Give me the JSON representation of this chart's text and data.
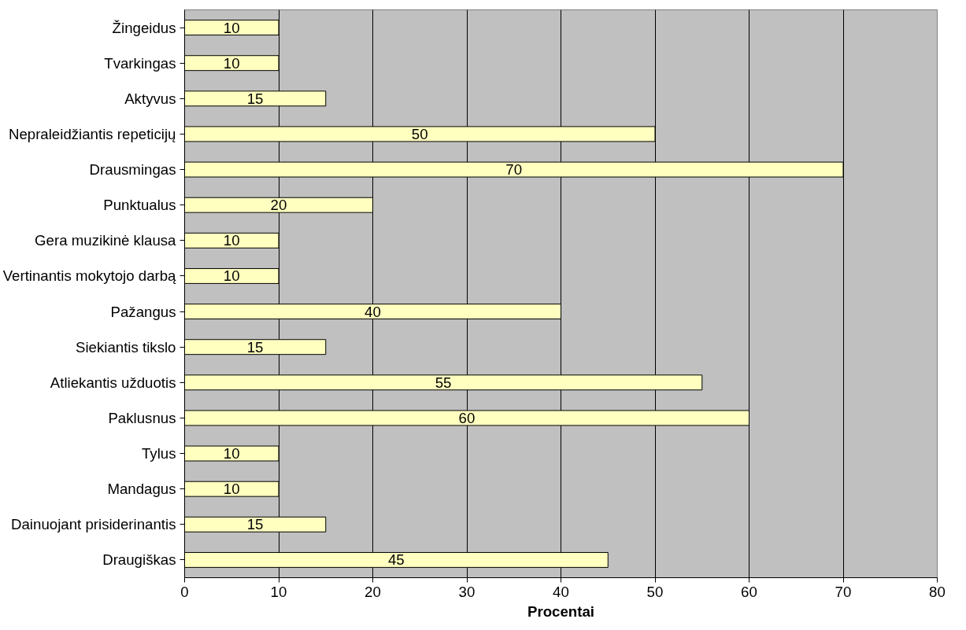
{
  "chart_data": {
    "type": "bar",
    "orientation": "horizontal",
    "xlabel": "Procentai",
    "categories": [
      "Žingeidus",
      "Tvarkingas",
      "Aktyvus",
      "Nepraleidžiantis repeticijų",
      "Drausmingas",
      "Punktualus",
      "Gera muzikinė klausa",
      "Vertinantis mokytojo darbą",
      "Pažangus",
      "Siekiantis tikslo",
      "Atliekantis užduotis",
      "Paklusnus",
      "Tylus",
      "Mandagus",
      "Dainuojant prisiderinantis",
      "Draugiškas"
    ],
    "values": [
      10,
      10,
      15,
      50,
      70,
      20,
      10,
      10,
      40,
      15,
      55,
      60,
      10,
      10,
      15,
      45
    ],
    "color": "#ffffc0",
    "xlim": [
      0,
      80
    ],
    "xticks": [
      0,
      10,
      20,
      30,
      40,
      50,
      60,
      70,
      80
    ],
    "grid": "x",
    "data_labels": true
  }
}
